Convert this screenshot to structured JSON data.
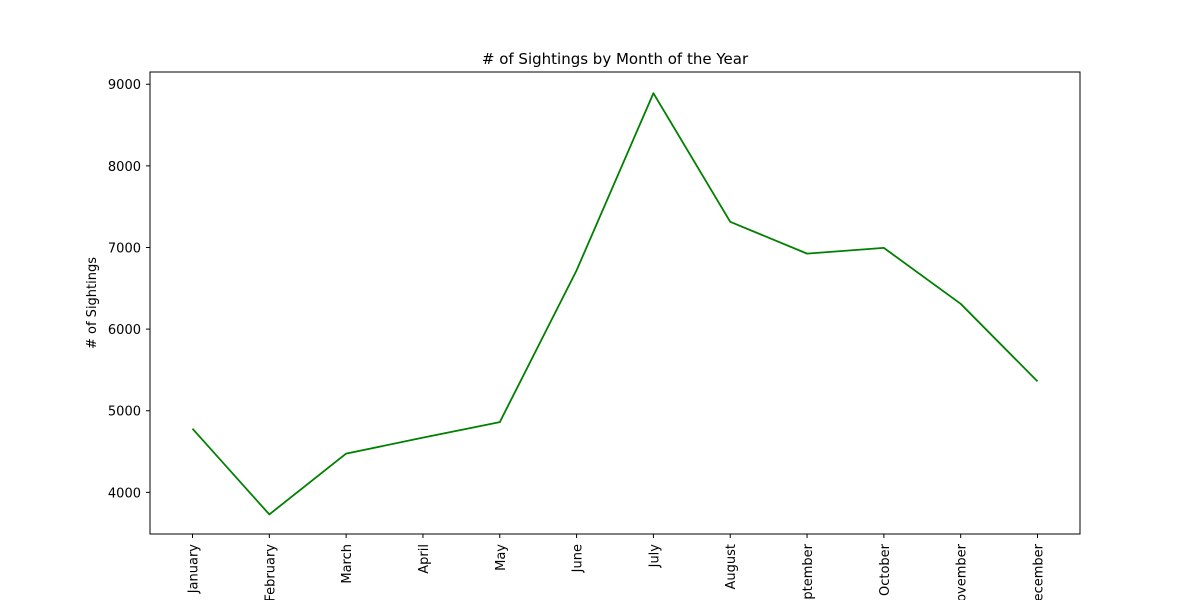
{
  "chart_data": {
    "type": "line",
    "title": "# of Sightings by Month of the Year",
    "xlabel": "",
    "ylabel": "# of Sightings",
    "categories": [
      "January",
      "February",
      "March",
      "April",
      "May",
      "June",
      "July",
      "August",
      "September",
      "October",
      "November",
      "December"
    ],
    "series": [
      {
        "values": [
          4780,
          3730,
          4475,
          4670,
          4860,
          6720,
          8890,
          7315,
          6925,
          6995,
          6310,
          5360
        ]
      }
    ],
    "ylim": [
      3490,
      9150
    ],
    "yticks": [
      4000,
      5000,
      6000,
      7000,
      8000,
      9000
    ],
    "line_color": "#008000",
    "grid": false,
    "legend": "none"
  }
}
